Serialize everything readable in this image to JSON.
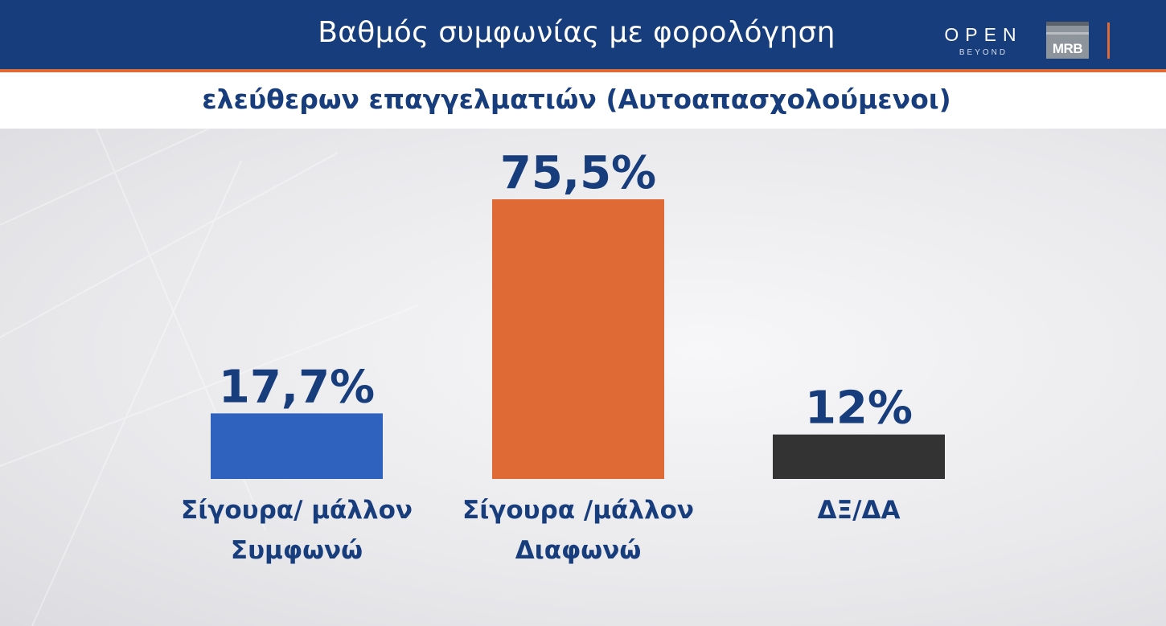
{
  "header": {
    "title_line1": "Βαθμός συμφωνίας με φορολόγηση",
    "title_line2": "ελεύθερων επαγγελματιών (Αυτοαπασχολούμενοι)"
  },
  "logos": {
    "open_text": "OPEN",
    "beyond_text": "BEYOND",
    "mrb_text": "MRB"
  },
  "colors": {
    "header_bg": "#173d7c",
    "accent": "#e06a35",
    "text_primary": "#173d7c"
  },
  "chart_data": {
    "type": "bar",
    "title": "Βαθμός συμφωνίας με φορολόγηση ελεύθερων επαγγελματιών (Αυτοαπασχολούμενοι)",
    "categories": [
      [
        "Σίγουρα/ μάλλον",
        "Συμφωνώ"
      ],
      [
        "Σίγουρα /μάλλον",
        "Διαφωνώ"
      ],
      [
        "ΔΞ/ΔΑ"
      ]
    ],
    "values": [
      17.7,
      75.5,
      12
    ],
    "value_labels": [
      "17,7%",
      "75,5%",
      "12%"
    ],
    "bar_colors": [
      "#2f62bf",
      "#e06a35",
      "#333333"
    ],
    "unit": "%",
    "ylim": [
      0,
      100
    ],
    "grid": false,
    "legend": "none"
  }
}
